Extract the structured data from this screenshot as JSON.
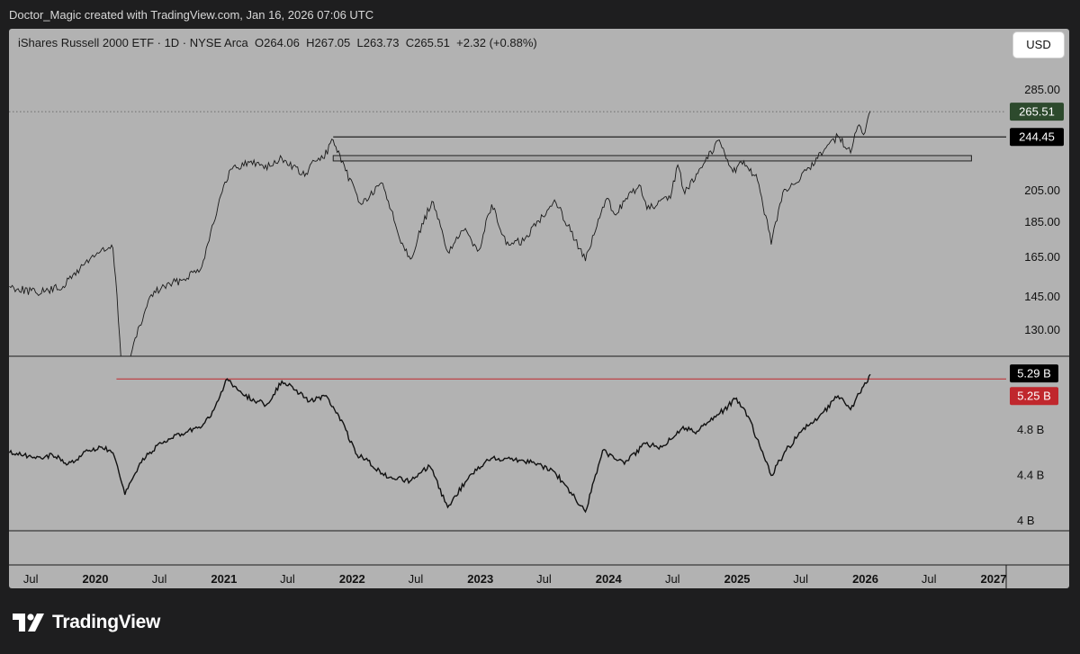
{
  "header": {
    "credit": "Doctor_Magic created with TradingView.com, Jan 16, 2026 07:06 UTC"
  },
  "legend": {
    "symbol": "iShares Russell 2000 ETF · 1D · NYSE Arca",
    "open": "O264.06",
    "high": "H267.05",
    "low": "L263.73",
    "close": "C265.51",
    "change": "+2.32 (+0.88%)"
  },
  "currency_button": "USD",
  "brand": {
    "name": "TradingView"
  },
  "colors": {
    "background": "#1e1e1f",
    "pane": "#b2b2b2",
    "price_line": "#1a1a1a",
    "last_price_tag": "#2d4a2d",
    "red_level": "#c0272d",
    "zone_fill": "#a6a6a6"
  },
  "chart_data": [
    {
      "type": "line",
      "title": "iShares Russell 2000 ETF · 1D · NYSE Arca",
      "y_scale": "log",
      "y_ticks": [
        "285.00",
        "205.00",
        "185.00",
        "165.00",
        "145.00",
        "130.00"
      ],
      "y_tick_values": [
        285,
        205,
        185,
        165,
        145,
        130
      ],
      "x_ticks": [
        "Jul",
        "2020",
        "Jul",
        "2021",
        "Jul",
        "2022",
        "Jul",
        "2023",
        "Jul",
        "2024",
        "Jul",
        "2025",
        "Jul",
        "2026",
        "Jul",
        "2027"
      ],
      "x_tick_dates": [
        "2019-07-01",
        "2020-01-01",
        "2020-07-01",
        "2021-01-01",
        "2021-07-01",
        "2022-01-01",
        "2022-07-01",
        "2023-01-01",
        "2023-07-01",
        "2024-01-01",
        "2024-07-01",
        "2025-01-01",
        "2025-07-01",
        "2026-01-01",
        "2026-07-01",
        "2027-01-01"
      ],
      "x_ticks_bold": [
        false,
        true,
        false,
        true,
        false,
        true,
        false,
        true,
        false,
        true,
        false,
        true,
        false,
        true,
        false,
        true
      ],
      "series": [
        {
          "x": [
            "2019-05-01",
            "2019-07-15",
            "2019-08-20",
            "2019-10-01",
            "2019-12-20",
            "2020-01-15",
            "2020-02-20",
            "2020-03-18",
            "2020-04-15",
            "2020-06-08",
            "2020-07-15",
            "2020-09-01",
            "2020-10-30",
            "2020-12-15",
            "2021-01-20",
            "2021-03-15",
            "2021-05-12",
            "2021-06-15",
            "2021-08-19",
            "2021-09-15",
            "2021-10-10",
            "2021-11-08",
            "2021-12-01",
            "2022-01-27",
            "2022-03-29",
            "2022-05-12",
            "2022-06-16",
            "2022-08-16",
            "2022-09-30",
            "2022-11-15",
            "2022-12-28",
            "2023-02-02",
            "2023-03-15",
            "2023-05-05",
            "2023-07-31",
            "2023-10-27",
            "2023-12-27",
            "2024-01-17",
            "2024-03-28",
            "2024-04-19",
            "2024-06-25",
            "2024-07-16",
            "2024-08-05",
            "2024-09-15",
            "2024-11-11",
            "2024-12-20",
            "2025-01-20",
            "2025-02-28",
            "2025-04-08",
            "2025-05-15",
            "2025-06-30",
            "2025-07-25",
            "2025-09-15",
            "2025-10-15",
            "2025-11-20",
            "2025-12-10",
            "2025-12-31",
            "2026-01-15"
          ],
          "values": [
            150,
            147,
            148,
            150,
            165,
            168,
            170,
            110,
            122,
            146,
            150,
            153,
            160,
            195,
            220,
            225,
            222,
            228,
            215,
            226,
            228,
            242,
            225,
            196,
            210,
            178,
            164,
            198,
            168,
            180,
            169,
            196,
            172,
            174,
            199,
            163,
            200,
            190,
            209,
            193,
            200,
            223,
            203,
            220,
            242,
            218,
            226,
            212,
            172,
            206,
            213,
            221,
            238,
            245,
            232,
            253,
            248,
            266
          ]
        }
      ],
      "last_price": {
        "label": "265.51",
        "value": 265.51
      },
      "annotations": [
        {
          "kind": "horizontal_line",
          "label": "244.45",
          "value": 244.45,
          "start": "2021-11-08"
        },
        {
          "kind": "zone",
          "low": 226,
          "high": 230,
          "start": "2021-11-08",
          "end": "2026-10-30"
        }
      ]
    },
    {
      "type": "line",
      "title": "",
      "unit": "B",
      "y_ticks": [
        "4.8 B",
        "4.4 B",
        "4 B"
      ],
      "y_tick_values": [
        4.8,
        4.4,
        4.0
      ],
      "series": [
        {
          "x": [
            "2019-05-01",
            "2019-07-15",
            "2019-09-01",
            "2019-10-15",
            "2019-12-15",
            "2020-01-15",
            "2020-02-20",
            "2020-03-25",
            "2020-05-15",
            "2020-07-15",
            "2020-09-15",
            "2020-10-30",
            "2020-11-25",
            "2021-01-10",
            "2021-03-01",
            "2021-05-01",
            "2021-06-15",
            "2021-07-15",
            "2021-09-01",
            "2021-10-15",
            "2021-11-20",
            "2022-01-15",
            "2022-02-15",
            "2022-04-01",
            "2022-06-15",
            "2022-08-10",
            "2022-09-30",
            "2022-12-01",
            "2023-02-01",
            "2023-03-15",
            "2023-06-01",
            "2023-08-01",
            "2023-10-27",
            "2023-12-15",
            "2024-02-15",
            "2024-04-15",
            "2024-06-01",
            "2024-07-31",
            "2024-09-01",
            "2024-11-25",
            "2024-12-30",
            "2025-02-01",
            "2025-04-08",
            "2025-05-20",
            "2025-07-01",
            "2025-09-01",
            "2025-10-15",
            "2025-11-20",
            "2025-12-15",
            "2026-01-15"
          ],
          "values": [
            4.6,
            4.55,
            4.58,
            4.5,
            4.62,
            4.65,
            4.6,
            4.23,
            4.55,
            4.7,
            4.78,
            4.83,
            4.92,
            5.25,
            5.1,
            5.02,
            5.23,
            5.18,
            5.05,
            5.1,
            4.95,
            4.58,
            4.53,
            4.4,
            4.35,
            4.48,
            4.12,
            4.4,
            4.55,
            4.55,
            4.52,
            4.43,
            4.08,
            4.62,
            4.5,
            4.68,
            4.65,
            4.83,
            4.78,
            4.98,
            5.08,
            4.92,
            4.4,
            4.62,
            4.78,
            4.95,
            5.1,
            4.98,
            5.12,
            5.29
          ]
        }
      ],
      "last_value": {
        "label": "5.29 B",
        "value": 5.29
      },
      "annotations": [
        {
          "kind": "horizontal_line",
          "label": "5.25 B",
          "value": 5.25,
          "start": "2020-03-01"
        }
      ]
    }
  ]
}
